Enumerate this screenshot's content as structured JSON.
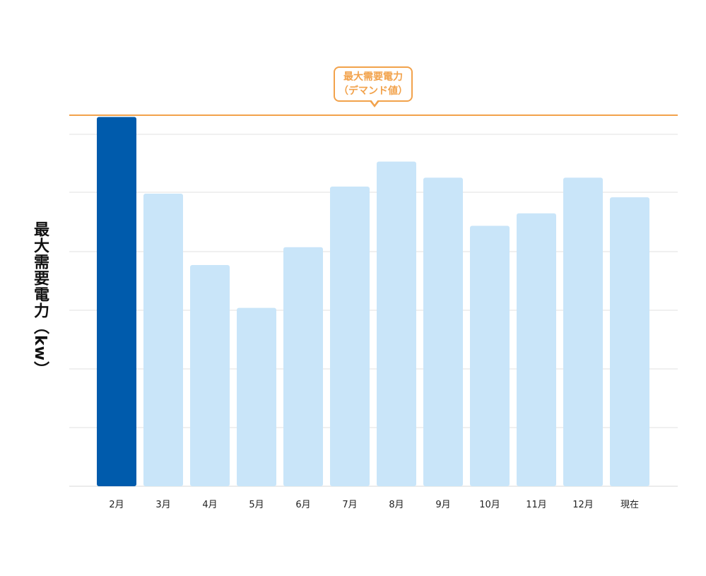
{
  "chart_data": {
    "type": "bar",
    "ylabel": "最大需要電力（kw）",
    "categories": [
      "2月",
      "3月",
      "4月",
      "5月",
      "6月",
      "7月",
      "8月",
      "9月",
      "10月",
      "11月",
      "12月",
      "現在"
    ],
    "values": [
      103.5,
      82,
      62,
      50,
      67,
      84,
      91,
      86.5,
      73,
      76.5,
      86.5,
      81
    ],
    "highlight_index": 0,
    "ylim": [
      0,
      104
    ],
    "grid": true,
    "reference_line": {
      "value": 104,
      "label_line1": "最大需要電力",
      "label_line2": "（デマンド値）"
    },
    "colors": {
      "highlight": "#005bac",
      "bar": "#c9e5f9",
      "reference": "#f2a24b",
      "grid": "#ececec",
      "text": "#222222"
    }
  }
}
